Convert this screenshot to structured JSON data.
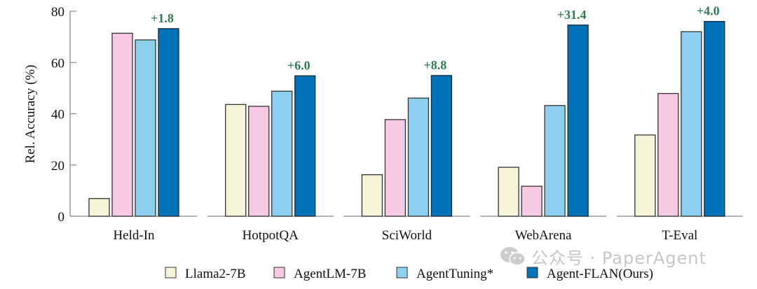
{
  "chart_data": {
    "type": "bar",
    "title": "",
    "xlabel": "",
    "ylabel": "Rel. Accuracy (%)",
    "ylim": [
      0,
      80
    ],
    "yticks": [
      0,
      20,
      40,
      60,
      80
    ],
    "grid": false,
    "categories": [
      "Held-In",
      "HotpotQA",
      "SciWorld",
      "WebArena",
      "T-Eval"
    ],
    "series": [
      {
        "name": "Llama2-7B",
        "color": "#f5f3d8",
        "values": [
          6.9,
          43.6,
          16.2,
          19.1,
          31.7
        ]
      },
      {
        "name": "AgentLM-7B",
        "color": "#f7c9e3",
        "values": [
          71.4,
          42.9,
          37.7,
          11.7,
          47.9
        ]
      },
      {
        "name": "AgentTuning*",
        "color": "#8dcfef",
        "values": [
          68.8,
          48.8,
          46.1,
          43.2,
          72.0
        ]
      },
      {
        "name": "Agent-FLAN(Ours)",
        "color": "#0072b8",
        "values": [
          73.2,
          54.8,
          54.9,
          74.6,
          76.0
        ]
      }
    ],
    "annotations": [
      "+1.8",
      "+6.0",
      "+8.8",
      "+31.4",
      "+4.0"
    ],
    "annotation_color": "#2e7d4f",
    "legend_position": "bottom-center"
  },
  "watermark": {
    "text": "公众号 · PaperAgent",
    "icon": "wechat-icon"
  }
}
